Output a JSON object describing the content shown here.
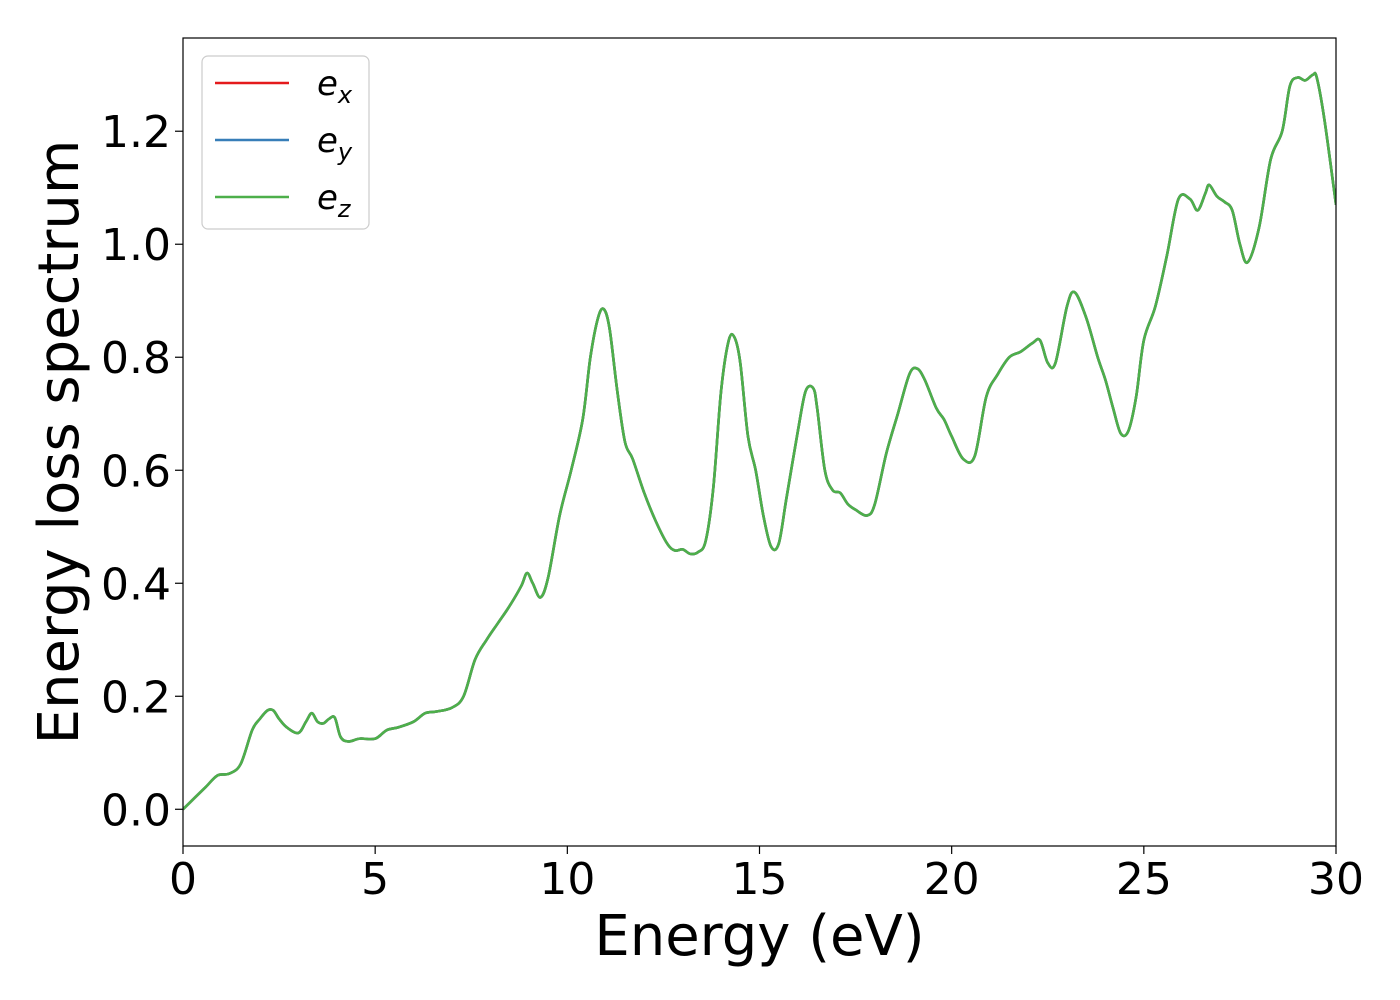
{
  "chart_data": {
    "type": "line",
    "title": "",
    "xlabel": "Energy (eV)",
    "ylabel": "Energy loss spectrum",
    "xlim": [
      0,
      30
    ],
    "ylim": [
      -0.065,
      1.365
    ],
    "xticks": [
      0,
      5,
      10,
      15,
      20,
      25,
      30
    ],
    "xtick_labels": [
      "0",
      "5",
      "10",
      "15",
      "20",
      "25",
      "30"
    ],
    "yticks": [
      0.0,
      0.2,
      0.4,
      0.6,
      0.8,
      1.0,
      1.2
    ],
    "ytick_labels": [
      "0.0",
      "0.2",
      "0.4",
      "0.6",
      "0.8",
      "1.0",
      "1.2"
    ],
    "grid": false,
    "legend_position": "top-left",
    "x": [
      0,
      0.3,
      0.6,
      0.9,
      1.2,
      1.5,
      1.8,
      2.0,
      2.2,
      2.35,
      2.5,
      2.7,
      3.0,
      3.2,
      3.35,
      3.5,
      3.65,
      3.8,
      3.95,
      4.1,
      4.3,
      4.6,
      5.0,
      5.3,
      5.6,
      6.0,
      6.3,
      6.6,
      7.0,
      7.3,
      7.6,
      7.9,
      8.2,
      8.5,
      8.8,
      8.95,
      9.1,
      9.3,
      9.5,
      9.8,
      10.1,
      10.4,
      10.6,
      10.8,
      10.95,
      11.1,
      11.3,
      11.5,
      11.7,
      12.0,
      12.3,
      12.6,
      12.8,
      13.0,
      13.2,
      13.4,
      13.6,
      13.8,
      14.0,
      14.2,
      14.35,
      14.5,
      14.7,
      14.9,
      15.1,
      15.3,
      15.5,
      15.7,
      16.0,
      16.2,
      16.4,
      16.5,
      16.7,
      16.9,
      17.1,
      17.3,
      17.5,
      17.8,
      18.0,
      18.3,
      18.6,
      18.9,
      19.1,
      19.3,
      19.6,
      19.8,
      20.0,
      20.3,
      20.6,
      20.9,
      21.2,
      21.5,
      21.8,
      22.1,
      22.3,
      22.5,
      22.7,
      23.0,
      23.2,
      23.5,
      23.8,
      24.0,
      24.2,
      24.4,
      24.6,
      24.8,
      25.0,
      25.3,
      25.6,
      25.9,
      26.2,
      26.4,
      26.6,
      26.7,
      26.9,
      27.1,
      27.3,
      27.5,
      27.7,
      28.0,
      28.3,
      28.6,
      28.8,
      29.0,
      29.2,
      29.4,
      29.5,
      29.7,
      30.0
    ],
    "series": [
      {
        "name": "e_x",
        "color": "#e41a1c",
        "values": [
          0.0,
          0.02,
          0.04,
          0.06,
          0.063,
          0.08,
          0.14,
          0.16,
          0.175,
          0.175,
          0.16,
          0.145,
          0.135,
          0.155,
          0.17,
          0.155,
          0.152,
          0.16,
          0.162,
          0.128,
          0.12,
          0.125,
          0.125,
          0.14,
          0.145,
          0.155,
          0.17,
          0.173,
          0.18,
          0.2,
          0.265,
          0.3,
          0.33,
          0.36,
          0.395,
          0.418,
          0.4,
          0.375,
          0.41,
          0.52,
          0.6,
          0.69,
          0.8,
          0.87,
          0.885,
          0.85,
          0.74,
          0.65,
          0.62,
          0.56,
          0.51,
          0.47,
          0.458,
          0.46,
          0.452,
          0.455,
          0.475,
          0.57,
          0.74,
          0.83,
          0.835,
          0.79,
          0.66,
          0.6,
          0.52,
          0.465,
          0.47,
          0.55,
          0.67,
          0.74,
          0.745,
          0.71,
          0.6,
          0.565,
          0.56,
          0.54,
          0.53,
          0.52,
          0.54,
          0.63,
          0.7,
          0.77,
          0.78,
          0.76,
          0.71,
          0.69,
          0.66,
          0.62,
          0.625,
          0.73,
          0.77,
          0.8,
          0.81,
          0.825,
          0.83,
          0.79,
          0.79,
          0.89,
          0.915,
          0.87,
          0.8,
          0.76,
          0.71,
          0.665,
          0.67,
          0.73,
          0.83,
          0.89,
          0.98,
          1.08,
          1.08,
          1.06,
          1.09,
          1.105,
          1.085,
          1.075,
          1.06,
          1.0,
          0.968,
          1.03,
          1.15,
          1.2,
          1.28,
          1.295,
          1.29,
          1.3,
          1.295,
          1.22,
          1.07
        ]
      },
      {
        "name": "e_y",
        "color": "#377eb8",
        "values": [
          0.0,
          0.02,
          0.04,
          0.06,
          0.063,
          0.08,
          0.14,
          0.16,
          0.175,
          0.175,
          0.16,
          0.145,
          0.135,
          0.155,
          0.17,
          0.155,
          0.152,
          0.16,
          0.162,
          0.128,
          0.12,
          0.125,
          0.125,
          0.14,
          0.145,
          0.155,
          0.17,
          0.173,
          0.18,
          0.2,
          0.265,
          0.3,
          0.33,
          0.36,
          0.395,
          0.418,
          0.4,
          0.375,
          0.41,
          0.52,
          0.6,
          0.69,
          0.8,
          0.87,
          0.885,
          0.85,
          0.74,
          0.65,
          0.62,
          0.56,
          0.51,
          0.47,
          0.458,
          0.46,
          0.452,
          0.455,
          0.475,
          0.57,
          0.74,
          0.83,
          0.835,
          0.79,
          0.66,
          0.6,
          0.52,
          0.465,
          0.47,
          0.55,
          0.67,
          0.74,
          0.745,
          0.71,
          0.6,
          0.565,
          0.56,
          0.54,
          0.53,
          0.52,
          0.54,
          0.63,
          0.7,
          0.77,
          0.78,
          0.76,
          0.71,
          0.69,
          0.66,
          0.62,
          0.625,
          0.73,
          0.77,
          0.8,
          0.81,
          0.825,
          0.83,
          0.79,
          0.79,
          0.89,
          0.915,
          0.87,
          0.8,
          0.76,
          0.71,
          0.665,
          0.67,
          0.73,
          0.83,
          0.89,
          0.98,
          1.08,
          1.08,
          1.06,
          1.09,
          1.105,
          1.085,
          1.075,
          1.06,
          1.0,
          0.968,
          1.03,
          1.15,
          1.2,
          1.28,
          1.295,
          1.29,
          1.3,
          1.295,
          1.22,
          1.07
        ]
      },
      {
        "name": "e_z",
        "color": "#4daf4a",
        "values": [
          0.0,
          0.02,
          0.04,
          0.06,
          0.063,
          0.08,
          0.14,
          0.16,
          0.175,
          0.175,
          0.16,
          0.145,
          0.135,
          0.155,
          0.17,
          0.155,
          0.152,
          0.16,
          0.162,
          0.128,
          0.12,
          0.125,
          0.125,
          0.14,
          0.145,
          0.155,
          0.17,
          0.173,
          0.18,
          0.2,
          0.265,
          0.3,
          0.33,
          0.36,
          0.395,
          0.418,
          0.4,
          0.375,
          0.41,
          0.52,
          0.6,
          0.69,
          0.8,
          0.87,
          0.885,
          0.85,
          0.74,
          0.65,
          0.62,
          0.56,
          0.51,
          0.47,
          0.458,
          0.46,
          0.452,
          0.455,
          0.475,
          0.57,
          0.74,
          0.83,
          0.835,
          0.79,
          0.66,
          0.6,
          0.52,
          0.465,
          0.47,
          0.55,
          0.67,
          0.74,
          0.745,
          0.71,
          0.6,
          0.565,
          0.56,
          0.54,
          0.53,
          0.52,
          0.54,
          0.63,
          0.7,
          0.77,
          0.78,
          0.76,
          0.71,
          0.69,
          0.66,
          0.62,
          0.625,
          0.73,
          0.77,
          0.8,
          0.81,
          0.825,
          0.83,
          0.79,
          0.79,
          0.89,
          0.915,
          0.87,
          0.8,
          0.76,
          0.71,
          0.665,
          0.67,
          0.73,
          0.83,
          0.89,
          0.98,
          1.08,
          1.08,
          1.06,
          1.09,
          1.105,
          1.085,
          1.075,
          1.06,
          1.0,
          0.968,
          1.03,
          1.15,
          1.2,
          1.28,
          1.295,
          1.29,
          1.3,
          1.295,
          1.22,
          1.07
        ]
      }
    ],
    "legend": [
      {
        "base": "e",
        "sub": "x",
        "color": "#e41a1c"
      },
      {
        "base": "e",
        "sub": "y",
        "color": "#377eb8"
      },
      {
        "base": "e",
        "sub": "z",
        "color": "#4daf4a"
      }
    ]
  }
}
